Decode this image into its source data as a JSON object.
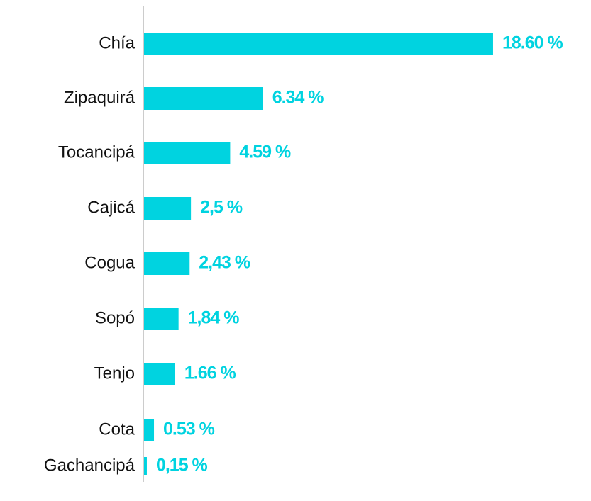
{
  "chart_data": {
    "type": "bar",
    "orientation": "horizontal",
    "categories": [
      "Chía",
      "Zipaquirá",
      "Tocancipá",
      "Cajicá",
      "Cogua",
      "Sopó",
      "Tenjo",
      "Cota",
      "Gachancipá"
    ],
    "values": [
      18.6,
      6.34,
      4.59,
      2.5,
      2.43,
      1.84,
      1.66,
      0.53,
      0.15
    ],
    "value_labels": [
      "18.60 %",
      "6.34 %",
      "4.59 %",
      "2,5 %",
      "2,43 %",
      "1,84 %",
      "1.66 %",
      "0.53 %",
      "0,15 %"
    ],
    "color": "#00d3e0"
  }
}
